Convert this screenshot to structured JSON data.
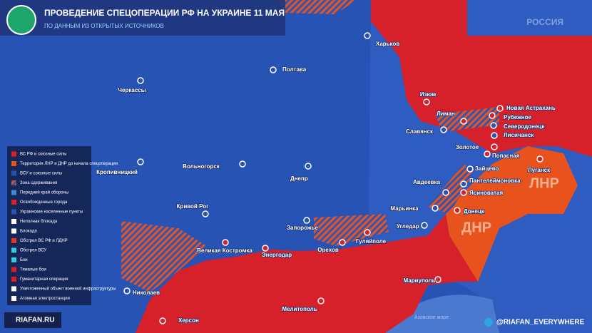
{
  "header": {
    "title": "ПРОВЕДЕНИЕ СПЕЦОПЕРАЦИИ РФ НА УКРАИНЕ 11 МАЯ",
    "subtitle": "ПО ДАННЫМ ИЗ ОТКРЫТЫХ ИСТОЧНИКОВ"
  },
  "country": "РОССИЯ",
  "sea": "Азовское море",
  "regions": [
    "ЛНР",
    "ДНР"
  ],
  "cities": [
    "Харьков",
    "Полтава",
    "Черкассы",
    "Изюм",
    "Новая Астрахань",
    "Рубежное",
    "Лиман",
    "Северодонецк",
    "Славянск",
    "Лисичанск",
    "Золотое",
    "Попасная",
    "Луганск",
    "Кропивницкий",
    "Вольногорск",
    "Днепр",
    "Зайцево",
    "Пантелеймоновка",
    "Авдеевка",
    "Ясиноватая",
    "Марьинка",
    "Донецк",
    "Кривой Рог",
    "Запорожье",
    "Угледар",
    "Великая Костромка",
    "Энергодар",
    "Орехов",
    "Гуляйполе",
    "Николаев",
    "Мариуполь",
    "Херсон",
    "Мелитополь"
  ],
  "legend": [
    "ВС РФ и союзные силы",
    "Территория ЛНР и ДНР до начала спецоперации",
    "ВСУ и союзные силы",
    "Зона сдерживания",
    "Передний край обороны",
    "Освобожденные города",
    "Украинские населенные пункты",
    "Неполная блокада",
    "Блокада",
    "Обстрел ВС РФ и ЛДНР",
    "Обстрел ВСУ",
    "Бои",
    "Тяжелые бои",
    "Гуманитарная операция",
    "Уничтоженный объект военной инфраструктуры",
    "Атомная электростанция"
  ],
  "footer": {
    "site": "RIAFAN.RU",
    "handle": "@RIAFAN_EVERYWHERE"
  }
}
